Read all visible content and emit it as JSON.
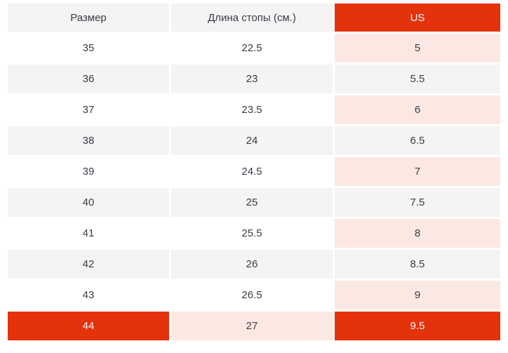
{
  "chart_data": {
    "type": "table",
    "columns": [
      "Размер",
      "Длина стопы (см.)",
      "US"
    ],
    "rows": [
      [
        "35",
        "22.5",
        "5"
      ],
      [
        "36",
        "23",
        "5.5"
      ],
      [
        "37",
        "23.5",
        "6"
      ],
      [
        "38",
        "24",
        "6.5"
      ],
      [
        "39",
        "24.5",
        "7"
      ],
      [
        "40",
        "25",
        "7.5"
      ],
      [
        "41",
        "25.5",
        "8"
      ],
      [
        "42",
        "26",
        "8.5"
      ],
      [
        "43",
        "26.5",
        "9"
      ],
      [
        "44",
        "27",
        "9.5"
      ]
    ],
    "highlighted_row_index": 9,
    "accent_column_index": 2,
    "zebra_striping": true,
    "legend_position": "none",
    "grid": false
  },
  "colors": {
    "accent": "#e3320c",
    "accent_text": "#ffffff",
    "us_column_bg": "#fce8e2",
    "stripe_bg": "#f4f4f4",
    "row_bg": "#ffffff",
    "text": "#393c47",
    "page_bg": "#ffffff"
  }
}
